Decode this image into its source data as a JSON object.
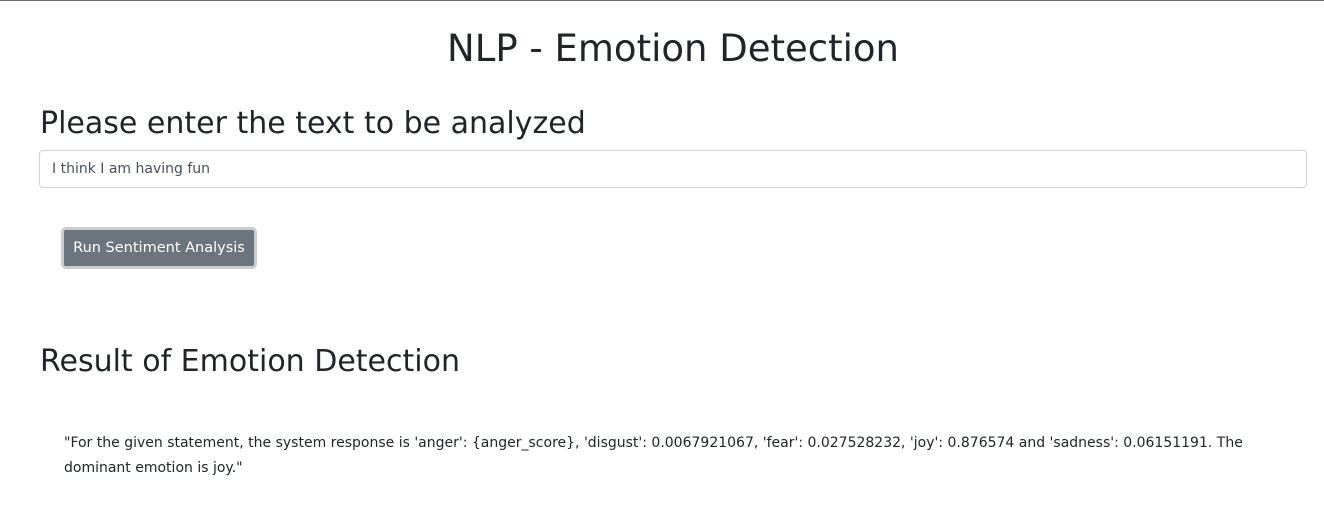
{
  "page": {
    "title": "NLP - Emotion Detection"
  },
  "input_section": {
    "heading": "Please enter the text to be analyzed",
    "text_value": "I think I am having fun"
  },
  "actions": {
    "run_label": "Run Sentiment Analysis"
  },
  "result_section": {
    "heading": "Result of Emotion Detection",
    "response_text": "\"For the given statement, the system response is 'anger': {anger_score}, 'disgust': 0.0067921067, 'fear': 0.027528232, 'joy': 0.876574 and 'sadness': 0.06151191. The dominant emotion is joy.\""
  },
  "colors": {
    "button_background": "#6c757d",
    "text": "#212529",
    "input_border": "#ced4da"
  }
}
